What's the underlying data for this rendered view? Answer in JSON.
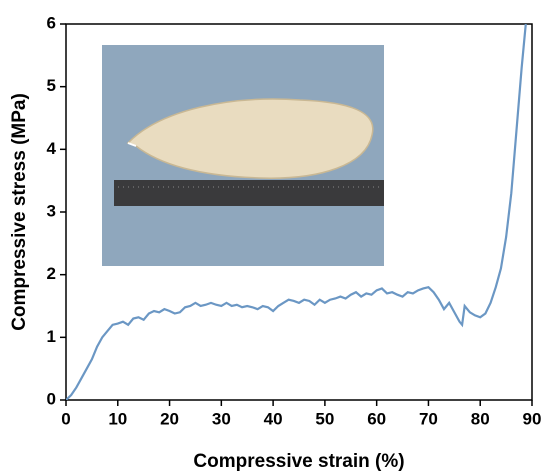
{
  "chart_data": {
    "type": "line",
    "x_label": "Compressive strain (%)",
    "y_label": "Compressive stress (MPa)",
    "xlim": [
      0,
      90
    ],
    "ylim": [
      0,
      6
    ],
    "xticks": [
      0,
      10,
      20,
      30,
      40,
      50,
      60,
      70,
      80,
      90
    ],
    "yticks": [
      0,
      1,
      2,
      3,
      4,
      5,
      6
    ],
    "series": [
      {
        "color": "#6b97c4",
        "x": [
          0,
          1,
          2,
          3,
          4,
          5,
          6,
          7,
          8,
          9,
          10,
          11,
          12,
          13,
          14,
          15,
          16,
          17,
          18,
          19,
          20,
          21,
          22,
          23,
          24,
          25,
          26,
          27,
          28,
          29,
          30,
          31,
          32,
          33,
          34,
          35,
          36,
          37,
          38,
          39,
          40,
          41,
          42,
          43,
          44,
          45,
          46,
          47,
          48,
          49,
          50,
          51,
          52,
          53,
          54,
          55,
          56,
          57,
          58,
          59,
          60,
          61,
          62,
          63,
          64,
          65,
          66,
          67,
          68,
          69,
          70,
          71,
          72,
          73,
          74,
          75,
          76,
          76.5,
          77,
          78,
          79,
          80,
          81,
          82,
          83,
          84,
          85,
          86,
          87,
          88,
          88.8
        ],
        "values": [
          0,
          0.08,
          0.2,
          0.35,
          0.5,
          0.65,
          0.85,
          1.0,
          1.1,
          1.2,
          1.22,
          1.25,
          1.2,
          1.3,
          1.32,
          1.28,
          1.38,
          1.42,
          1.4,
          1.45,
          1.42,
          1.38,
          1.4,
          1.48,
          1.5,
          1.55,
          1.5,
          1.52,
          1.55,
          1.52,
          1.5,
          1.55,
          1.5,
          1.52,
          1.48,
          1.5,
          1.48,
          1.45,
          1.5,
          1.48,
          1.42,
          1.5,
          1.55,
          1.6,
          1.58,
          1.55,
          1.6,
          1.58,
          1.52,
          1.6,
          1.55,
          1.6,
          1.62,
          1.65,
          1.62,
          1.68,
          1.72,
          1.65,
          1.7,
          1.68,
          1.75,
          1.78,
          1.7,
          1.72,
          1.68,
          1.65,
          1.72,
          1.7,
          1.75,
          1.78,
          1.8,
          1.72,
          1.6,
          1.45,
          1.55,
          1.4,
          1.25,
          1.2,
          1.5,
          1.4,
          1.35,
          1.32,
          1.38,
          1.55,
          1.8,
          2.1,
          2.6,
          3.3,
          4.3,
          5.3,
          6.0
        ]
      }
    ]
  }
}
